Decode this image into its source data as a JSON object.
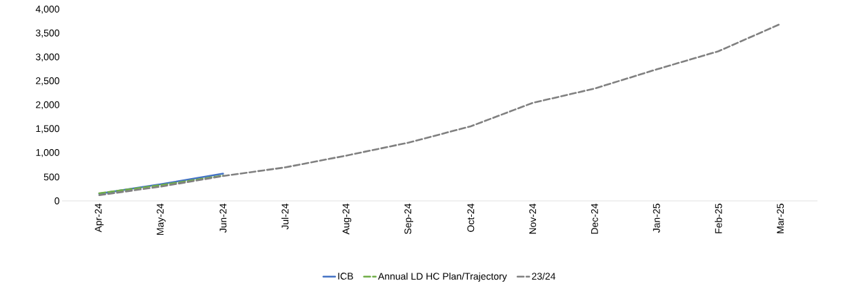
{
  "chart_data": {
    "type": "line",
    "categories": [
      "Apr-24",
      "May-24",
      "Jun-24",
      "Jul-24",
      "Aug-24",
      "Sep-24",
      "Oct-24",
      "Nov-24",
      "Dec-24",
      "Jan-25",
      "Feb-25",
      "Mar-25"
    ],
    "series": [
      {
        "name": "ICB",
        "color": "#4472c4",
        "line_style": "solid",
        "values": [
          150,
          350,
          570,
          null,
          null,
          null,
          null,
          null,
          null,
          null,
          null,
          null
        ]
      },
      {
        "name": "Annual LD HC Plan/Trajectory",
        "color": "#70ad47",
        "line_style": "dashed",
        "values": [
          160,
          330,
          530,
          null,
          null,
          null,
          null,
          null,
          null,
          null,
          null,
          null
        ]
      },
      {
        "name": "23/24",
        "color": "#808080",
        "line_style": "dashed",
        "values": [
          120,
          300,
          520,
          700,
          950,
          1220,
          1560,
          2050,
          2350,
          2750,
          3130,
          3700
        ]
      }
    ],
    "ylim": [
      0,
      4000
    ],
    "yticks": [
      {
        "value": 0,
        "label": "0"
      },
      {
        "value": 500,
        "label": "500"
      },
      {
        "value": 1000,
        "label": "1,000"
      },
      {
        "value": 1500,
        "label": "1,500"
      },
      {
        "value": 2000,
        "label": "2,000"
      },
      {
        "value": 2500,
        "label": "2,500"
      },
      {
        "value": 3000,
        "label": "3,000"
      },
      {
        "value": 3500,
        "label": "3,500"
      },
      {
        "value": 4000,
        "label": "4,000"
      }
    ],
    "grid": false,
    "legend": "bottom",
    "marker": "none"
  }
}
